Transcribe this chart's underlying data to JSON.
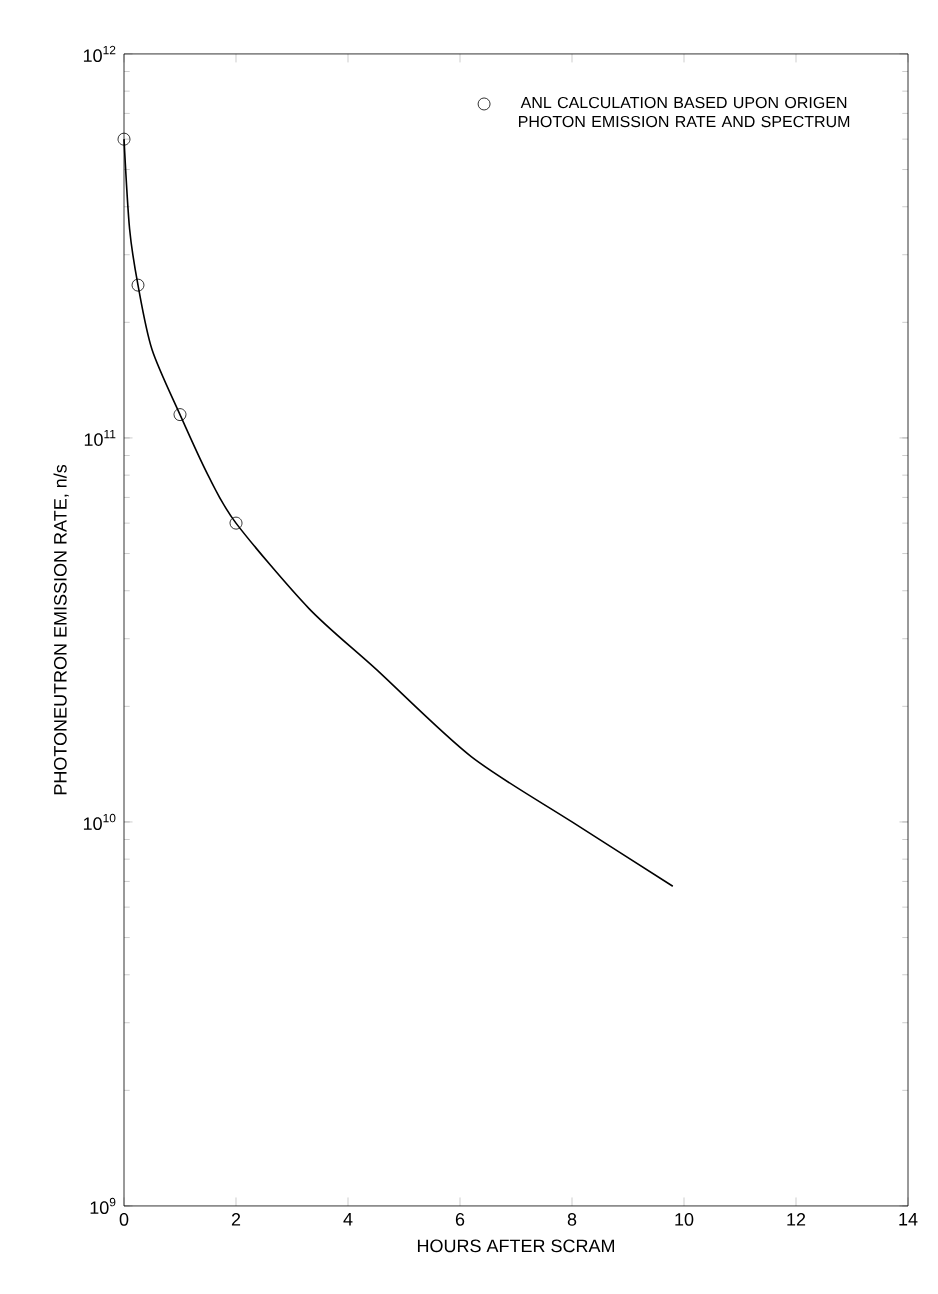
{
  "chart_data": {
    "type": "line",
    "xlabel": "HOURS AFTER SCRAM",
    "ylabel": "PHOTONEUTRON EMISSION RATE, n/s",
    "log": "y",
    "xlim": [
      0,
      14
    ],
    "ylim": [
      1000000000.0,
      1000000000000.0
    ],
    "xticks": [
      0,
      2,
      4,
      6,
      8,
      10,
      12,
      14
    ],
    "yticks": [
      {
        "value": 1000000000.0,
        "label": "10$^{9}$"
      },
      {
        "value": 10000000000.0,
        "label": "10$^{10}$"
      },
      {
        "value": 100000000000.0,
        "label": "10$^{11}$"
      },
      {
        "value": 1000000000000.0,
        "label": "10$^{12}$"
      }
    ],
    "legend": "top right",
    "grid": false,
    "series": [
      {
        "color": "#000000",
        "marker": "none",
        "x": [
          0,
          0.1,
          0.25,
          0.5,
          1,
          1.5,
          2,
          3.3,
          4.5,
          6.2,
          8,
          9.8
        ],
        "values": [
          600000000000.0,
          350000000000.0,
          250000000000.0,
          170000000000.0,
          115000000000.0,
          80000000000.0,
          60000000000.0,
          36000000000.0,
          25000000000.0,
          14800000000.0,
          10000000000.0,
          6800000000.0
        ]
      },
      {
        "type": "scatter",
        "name": "ANL CALCULATION BASED UPON ORIGEN PHOTON EMISSION RATE AND SPECTRUM",
        "color": "#000000",
        "marker": "circle",
        "x": [
          0,
          0.25,
          1,
          2
        ],
        "values": [
          600000000000.0,
          250000000000.0,
          115000000000.0,
          60000000000.0
        ]
      }
    ]
  }
}
